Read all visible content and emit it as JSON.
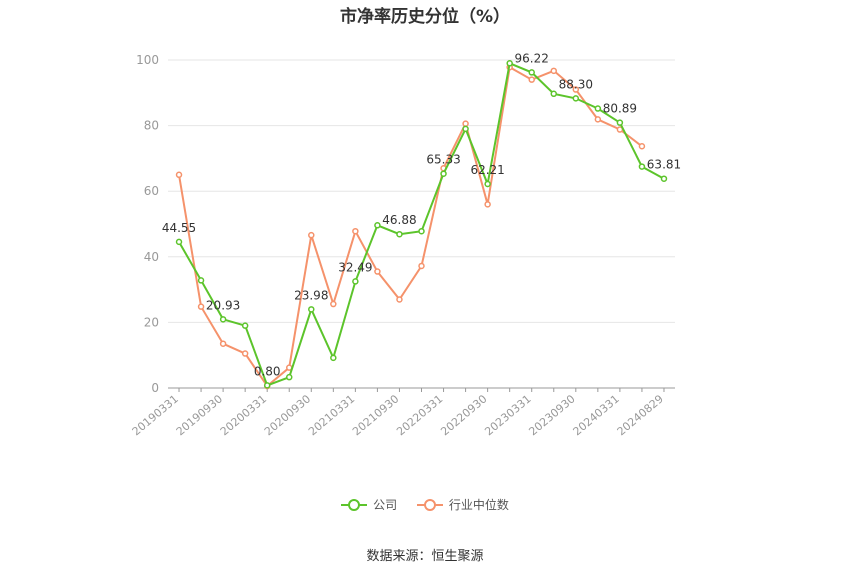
{
  "chart_data": {
    "type": "line",
    "title": "市净率历史分位（%）",
    "source": "数据来源：恒生聚源",
    "x": [
      "20190331",
      "20190630",
      "20190930",
      "20191231",
      "20200331",
      "20200630",
      "20200930",
      "20201231",
      "20210331",
      "20210630",
      "20210930",
      "20211231",
      "20220331",
      "20220630",
      "20220930",
      "20221231",
      "20230331",
      "20230630",
      "20230930",
      "20231231",
      "20240331",
      "20240630",
      "20240829"
    ],
    "x_tick_labels": [
      "20190331",
      "20190930",
      "20200331",
      "20200930",
      "20210331",
      "20210930",
      "20220331",
      "20220930",
      "20230331",
      "20230930",
      "20240331",
      "20240829"
    ],
    "ylim": [
      0,
      100
    ],
    "y_ticks": [
      0,
      20,
      40,
      60,
      80,
      100
    ],
    "grid": true,
    "legend_position": "bottom",
    "series": [
      {
        "name": "公司",
        "color": "#5cc42b",
        "values": [
          44.55,
          32.8,
          20.93,
          19.0,
          0.8,
          3.3,
          23.98,
          9.2,
          32.49,
          49.6,
          46.88,
          47.8,
          65.33,
          79.0,
          62.21,
          99.0,
          96.22,
          89.7,
          88.3,
          85.2,
          80.89,
          67.5,
          63.81
        ],
        "data_labels": {
          "0": "44.55",
          "2": "20.93",
          "4": "0.80",
          "6": "23.98",
          "8": "32.49",
          "10": "46.88",
          "12": "65.33",
          "14": "62.21",
          "16": "96.22",
          "18": "88.30",
          "20": "80.89",
          "22": "63.81"
        }
      },
      {
        "name": "行业中位数",
        "color": "#f5926b",
        "values": [
          65.0,
          24.8,
          13.5,
          10.5,
          0.6,
          6.2,
          46.6,
          25.6,
          47.8,
          35.5,
          27.0,
          37.2,
          67.0,
          80.6,
          56.0,
          97.8,
          94.0,
          96.7,
          91.0,
          81.9,
          78.8,
          73.7,
          null
        ]
      }
    ]
  }
}
